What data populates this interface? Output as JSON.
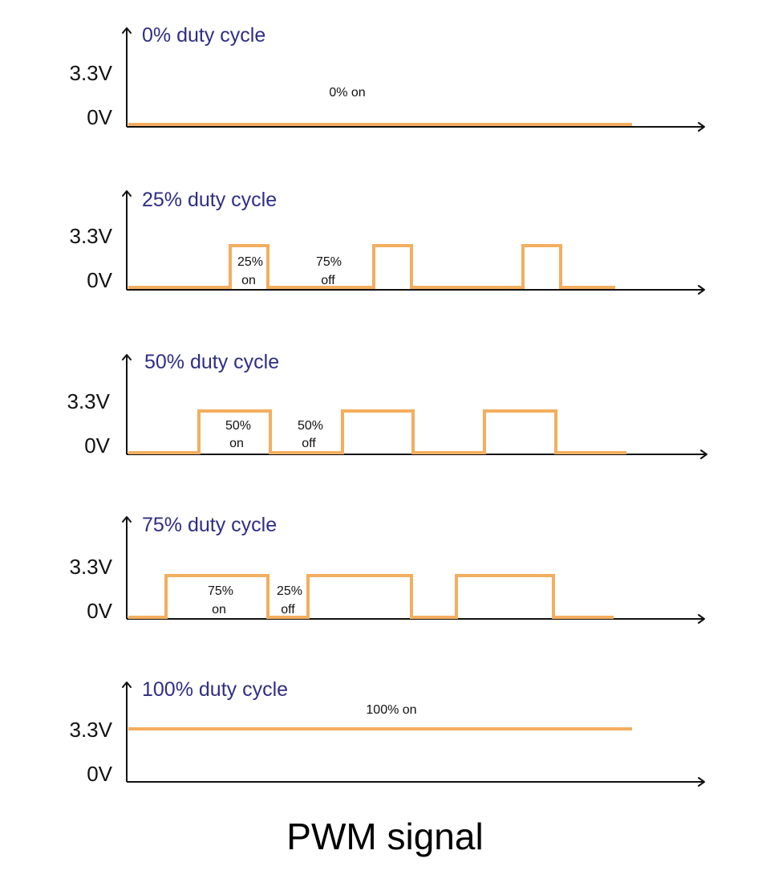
{
  "colors": {
    "signal": "#f3ae5f",
    "title_text": "#2e2e86",
    "axis": "#111111",
    "label_text": "#111111"
  },
  "voltage_labels": {
    "high": "3.3V",
    "low": "0V"
  },
  "panels": [
    {
      "title": "0% duty cycle",
      "duty_percent": 0,
      "annotations": [
        {
          "lines": [
            "0% on"
          ]
        }
      ]
    },
    {
      "title": "25% duty cycle",
      "duty_percent": 25,
      "annotations": [
        {
          "lines": [
            "25%",
            "on"
          ]
        },
        {
          "lines": [
            "75%",
            "off"
          ]
        }
      ]
    },
    {
      "title": "50% duty cycle",
      "duty_percent": 50,
      "annotations": [
        {
          "lines": [
            "50%",
            "on"
          ]
        },
        {
          "lines": [
            "50%",
            "off"
          ]
        }
      ]
    },
    {
      "title": "75% duty cycle",
      "duty_percent": 75,
      "annotations": [
        {
          "lines": [
            "75%",
            "on"
          ]
        },
        {
          "lines": [
            "25%",
            "off"
          ]
        }
      ]
    },
    {
      "title": "100% duty cycle",
      "duty_percent": 100,
      "annotations": [
        {
          "lines": [
            "100% on"
          ]
        }
      ]
    }
  ],
  "footer_title": "PWM signal"
}
